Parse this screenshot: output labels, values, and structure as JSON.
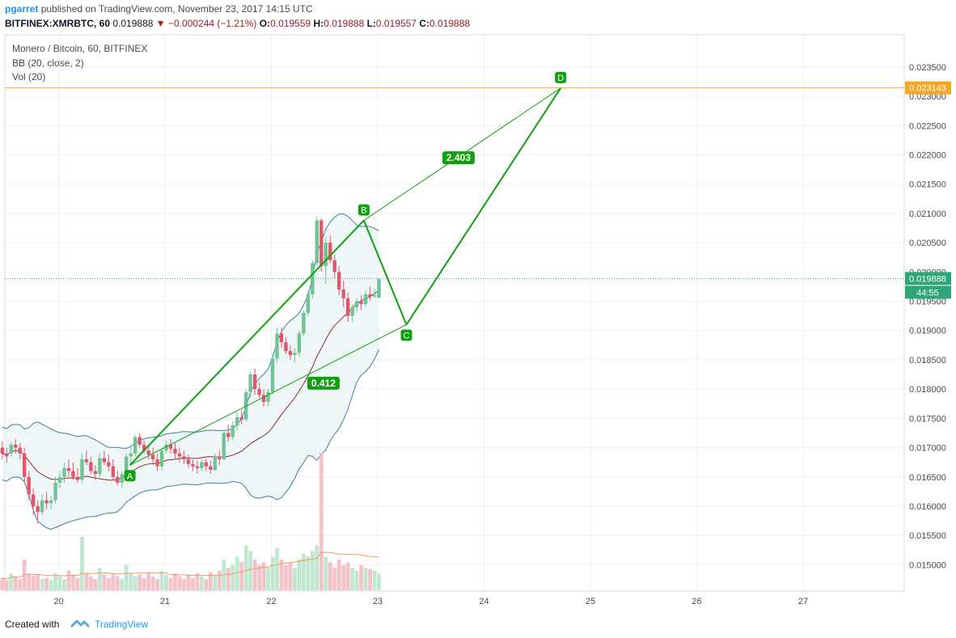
{
  "header": {
    "user": "pgarret",
    "published": "published on TradingView.com, November 23, 2017 14:15 UTC",
    "symbol": "BITFINEX:XMRBTC, 60",
    "last": "0.019888",
    "change": "−0.000244 (−1.21%)",
    "o_label": "O:",
    "o": "0.019559",
    "h_label": "H:",
    "h": "0.019888",
    "l_label": "L:",
    "l": "0.019557",
    "c_label": "C:",
    "c": "0.019888"
  },
  "legend": {
    "title": "Monero / Bitcoin, 60, BITFINEX",
    "bb": "BB (20, close, 2)",
    "vol": "Vol (20)"
  },
  "footer": {
    "created": "Created with",
    "brand": "TradingView"
  },
  "colors": {
    "up": "#6fc495",
    "down": "#e0566a",
    "pattern": "#10a010",
    "resistance": "#f5a623",
    "bb_basis": "#8c2a2a",
    "bb_band": "#3a7fa1",
    "vol_ma": "#f59a5a"
  },
  "chart_data": {
    "type": "candlestick",
    "x_ticks": [
      "20",
      "21",
      "22",
      "23",
      "24",
      "25",
      "26",
      "27"
    ],
    "y_ticks": [
      "0.023500",
      "0.023000",
      "0.022500",
      "0.022000",
      "0.021500",
      "0.021000",
      "0.020500",
      "0.020000",
      "0.019500",
      "0.019000",
      "0.018500",
      "0.018000",
      "0.017500",
      "0.017000",
      "0.016500",
      "0.016000",
      "0.015500",
      "0.015000"
    ],
    "ylim": [
      0.01455,
      0.02405
    ],
    "price_label": "0.019888",
    "countdown_label": "44:55",
    "resistance_label": "0.023143",
    "resistance_value": 0.023143,
    "last_value": 0.019888,
    "pattern": {
      "points": [
        {
          "label": "A",
          "day": 20.67,
          "value": 0.0167
        },
        {
          "label": "B",
          "day": 22.87,
          "value": 0.02088
        },
        {
          "label": "C",
          "day": 23.27,
          "value": 0.0191
        },
        {
          "label": "D",
          "day": 24.72,
          "value": 0.02314
        }
      ],
      "ratios": [
        {
          "label": "0.412",
          "day": 22.49,
          "value": 0.0181
        },
        {
          "label": "2.403",
          "day": 23.76,
          "value": 0.02195
        }
      ]
    },
    "candles_hourly_ohlc": [
      [
        0.017,
        0.0171,
        0.0168,
        0.0169
      ],
      [
        0.0169,
        0.017,
        0.01675,
        0.01685
      ],
      [
        0.0169,
        0.0171,
        0.01685,
        0.01705
      ],
      [
        0.01705,
        0.01715,
        0.0169,
        0.017
      ],
      [
        0.017,
        0.01708,
        0.0168,
        0.0169
      ],
      [
        0.0169,
        0.017,
        0.0164,
        0.0165
      ],
      [
        0.0165,
        0.0166,
        0.0161,
        0.0162
      ],
      [
        0.0162,
        0.0163,
        0.01585,
        0.016
      ],
      [
        0.016,
        0.0161,
        0.0157,
        0.0159
      ],
      [
        0.0159,
        0.0162,
        0.01585,
        0.0161
      ],
      [
        0.0161,
        0.01625,
        0.01595,
        0.01605
      ],
      [
        0.01605,
        0.01618,
        0.01595,
        0.0161
      ],
      [
        0.0161,
        0.0165,
        0.01605,
        0.0164
      ],
      [
        0.0164,
        0.0166,
        0.0163,
        0.0165
      ],
      [
        0.0165,
        0.01675,
        0.0164,
        0.01665
      ],
      [
        0.01665,
        0.0168,
        0.0165,
        0.0166
      ],
      [
        0.0166,
        0.01675,
        0.01645,
        0.0165
      ],
      [
        0.0165,
        0.01665,
        0.0164,
        0.01645
      ],
      [
        0.01645,
        0.0169,
        0.0164,
        0.0168
      ],
      [
        0.0168,
        0.01695,
        0.0167,
        0.01675
      ],
      [
        0.01675,
        0.01685,
        0.01655,
        0.0166
      ],
      [
        0.0166,
        0.0167,
        0.01645,
        0.01655
      ],
      [
        0.01655,
        0.0169,
        0.0165,
        0.01682
      ],
      [
        0.01682,
        0.01695,
        0.0167,
        0.01675
      ],
      [
        0.01675,
        0.01688,
        0.0166,
        0.01668
      ],
      [
        0.01668,
        0.0168,
        0.01645,
        0.0165
      ],
      [
        0.0165,
        0.0166,
        0.01635,
        0.0164
      ],
      [
        0.0164,
        0.0166,
        0.0163,
        0.01655
      ],
      [
        0.01655,
        0.0169,
        0.0165,
        0.01685
      ],
      [
        0.01685,
        0.017,
        0.0167,
        0.0169
      ],
      [
        0.0169,
        0.01722,
        0.01685,
        0.01718
      ],
      [
        0.01718,
        0.01725,
        0.017,
        0.01705
      ],
      [
        0.01705,
        0.01712,
        0.0169,
        0.01695
      ],
      [
        0.01695,
        0.01705,
        0.0168,
        0.01688
      ],
      [
        0.01688,
        0.017,
        0.0167,
        0.0168
      ],
      [
        0.0168,
        0.0169,
        0.0166,
        0.01668
      ],
      [
        0.01668,
        0.017,
        0.0166,
        0.01695
      ],
      [
        0.01695,
        0.01712,
        0.0169,
        0.01705
      ],
      [
        0.01705,
        0.01715,
        0.0169,
        0.01698
      ],
      [
        0.01698,
        0.01708,
        0.0168,
        0.0169
      ],
      [
        0.0169,
        0.017,
        0.01675,
        0.01685
      ],
      [
        0.01685,
        0.01695,
        0.01672,
        0.0168
      ],
      [
        0.0168,
        0.01688,
        0.01665,
        0.01672
      ],
      [
        0.01672,
        0.0168,
        0.0166,
        0.01668
      ],
      [
        0.01668,
        0.01678,
        0.01655,
        0.01665
      ],
      [
        0.01665,
        0.0168,
        0.0166,
        0.01675
      ],
      [
        0.01675,
        0.01682,
        0.0166,
        0.01668
      ],
      [
        0.01668,
        0.01678,
        0.01655,
        0.01662
      ],
      [
        0.01662,
        0.0169,
        0.0166,
        0.01685
      ],
      [
        0.01685,
        0.01695,
        0.0167,
        0.0168
      ],
      [
        0.0168,
        0.0173,
        0.01678,
        0.01725
      ],
      [
        0.01725,
        0.0174,
        0.0171,
        0.01718
      ],
      [
        0.01718,
        0.01745,
        0.01712,
        0.01738
      ],
      [
        0.01738,
        0.0176,
        0.0173,
        0.01752
      ],
      [
        0.01752,
        0.01765,
        0.0174,
        0.01748
      ],
      [
        0.01748,
        0.018,
        0.01745,
        0.01795
      ],
      [
        0.01795,
        0.0183,
        0.01785,
        0.01825
      ],
      [
        0.01825,
        0.01835,
        0.0179,
        0.018
      ],
      [
        0.018,
        0.01812,
        0.01785,
        0.0179
      ],
      [
        0.0179,
        0.018,
        0.0177,
        0.01778
      ],
      [
        0.01778,
        0.018,
        0.0177,
        0.01795
      ],
      [
        0.01795,
        0.0186,
        0.0179,
        0.01852
      ],
      [
        0.01852,
        0.01905,
        0.01845,
        0.01895
      ],
      [
        0.01895,
        0.01905,
        0.0187,
        0.0188
      ],
      [
        0.0188,
        0.01888,
        0.0186,
        0.01865
      ],
      [
        0.01865,
        0.01875,
        0.0185,
        0.01858
      ],
      [
        0.01858,
        0.0187,
        0.01845,
        0.01862
      ],
      [
        0.01862,
        0.019,
        0.01855,
        0.01895
      ],
      [
        0.01895,
        0.01935,
        0.0189,
        0.0193
      ],
      [
        0.0193,
        0.01968,
        0.01925,
        0.01962
      ],
      [
        0.01962,
        0.0202,
        0.01955,
        0.02015
      ],
      [
        0.02015,
        0.02095,
        0.0201,
        0.02088
      ],
      [
        0.02088,
        0.02092,
        0.02,
        0.0201
      ],
      [
        0.0201,
        0.0206,
        0.0198,
        0.0205
      ],
      [
        0.0205,
        0.02062,
        0.02015,
        0.0202
      ],
      [
        0.0202,
        0.0203,
        0.0199,
        0.02
      ],
      [
        0.02,
        0.0201,
        0.0196,
        0.0197
      ],
      [
        0.0197,
        0.01985,
        0.0194,
        0.01955
      ],
      [
        0.01955,
        0.01965,
        0.01915,
        0.01925
      ],
      [
        0.01925,
        0.01945,
        0.01915,
        0.0194
      ],
      [
        0.0194,
        0.01955,
        0.0193,
        0.0195
      ],
      [
        0.0195,
        0.0196,
        0.01935,
        0.01945
      ],
      [
        0.01945,
        0.01968,
        0.0194,
        0.01962
      ],
      [
        0.01962,
        0.01975,
        0.0195,
        0.01958
      ],
      [
        0.01958,
        0.01972,
        0.01955,
        0.0196
      ],
      [
        0.01956,
        0.0199,
        0.01955,
        0.01988
      ]
    ],
    "volume": [
      22,
      18,
      30,
      25,
      20,
      55,
      30,
      25,
      28,
      20,
      22,
      18,
      30,
      25,
      20,
      35,
      28,
      22,
      95,
      30,
      25,
      20,
      40,
      28,
      22,
      30,
      25,
      20,
      45,
      30,
      25,
      28,
      22,
      30,
      25,
      20,
      35,
      28,
      22,
      30,
      25,
      20,
      28,
      22,
      30,
      25,
      20,
      32,
      28,
      35,
      55,
      40,
      45,
      60,
      50,
      80,
      70,
      55,
      45,
      50,
      40,
      60,
      75,
      55,
      45,
      50,
      40,
      55,
      65,
      60,
      70,
      80,
      245,
      60,
      50,
      40,
      55,
      45,
      50,
      40,
      35,
      45,
      40,
      38,
      35,
      30
    ]
  }
}
